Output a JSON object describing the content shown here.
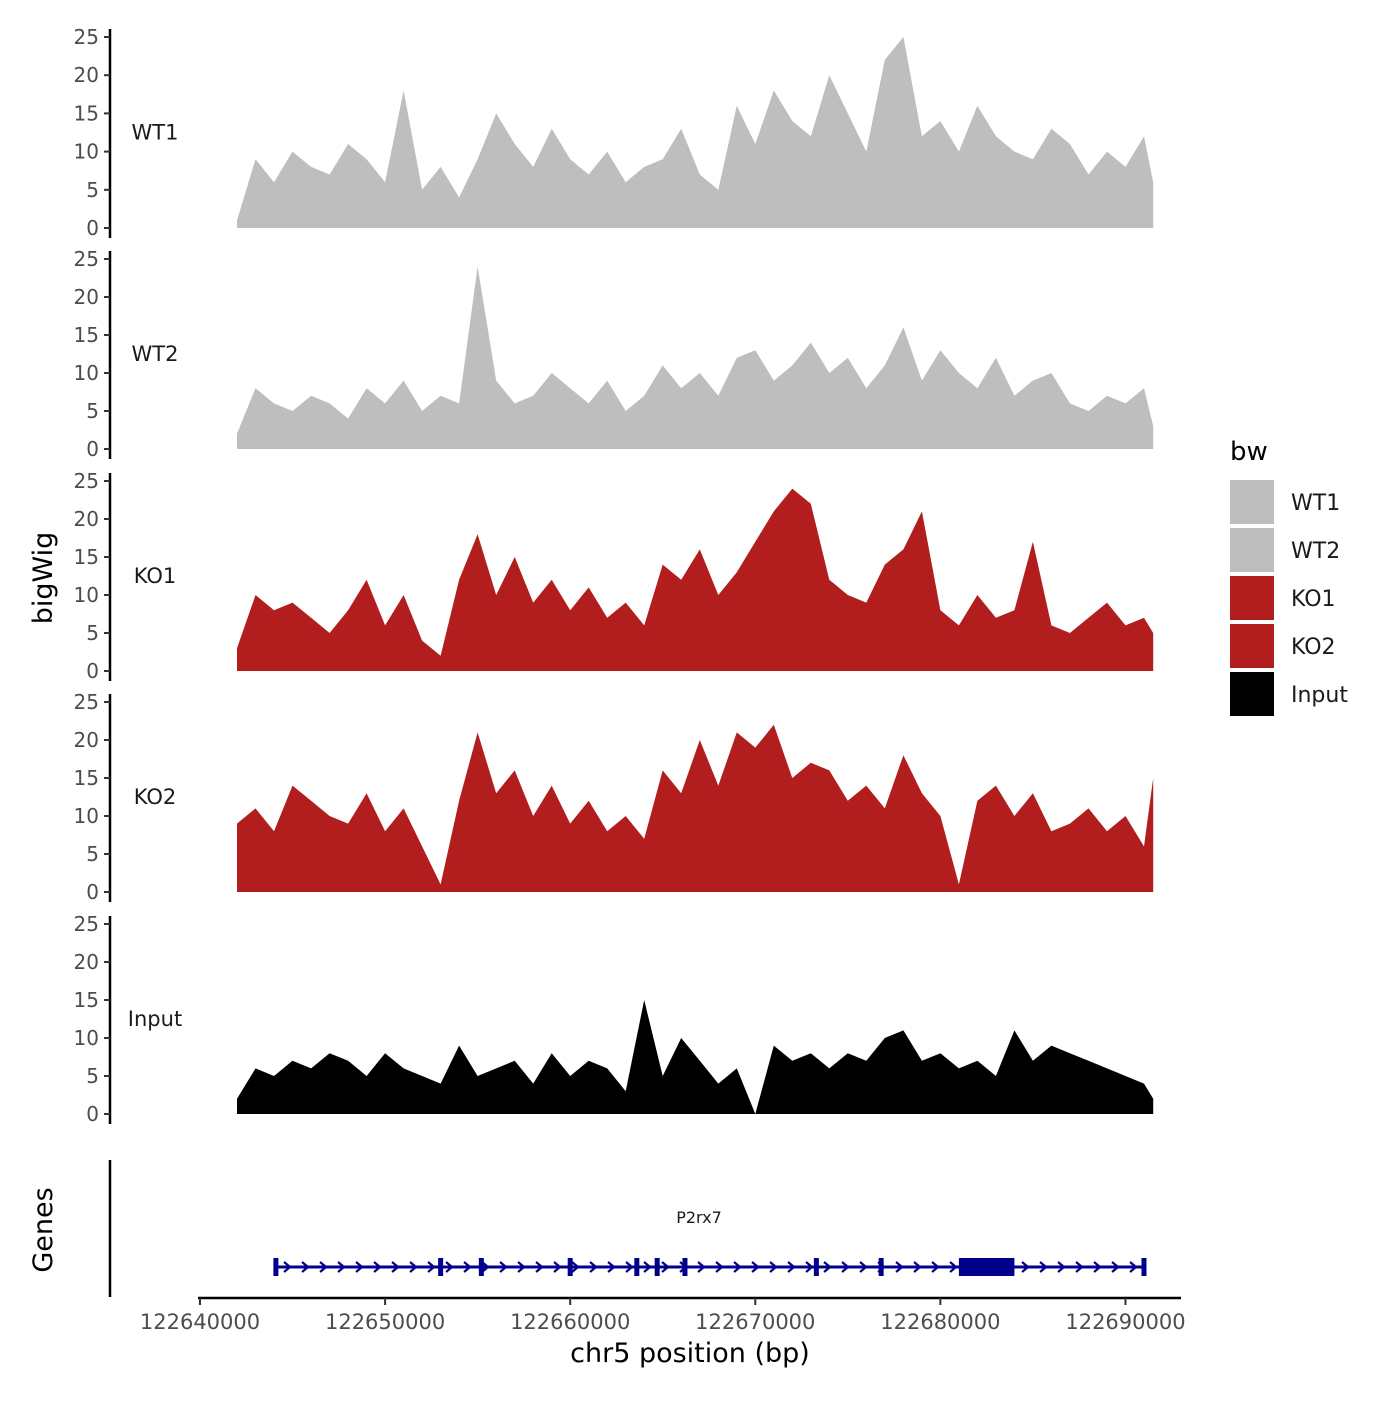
{
  "chart_data": {
    "type": "area",
    "title": "",
    "xlabel": "chr5 position (bp)",
    "ylabel": "bigWig",
    "genes_label": "Genes",
    "xlim": [
      122640000,
      122693000
    ],
    "x_ticks": [
      122640000,
      122650000,
      122660000,
      122670000,
      122680000,
      122690000
    ],
    "x_tick_labels": [
      "122640000",
      "122650000",
      "122660000",
      "122670000",
      "122680000",
      "122690000"
    ],
    "ylim": [
      0,
      25
    ],
    "y_ticks": [
      0,
      5,
      10,
      15,
      20,
      25
    ],
    "y_tick_labels": [
      "0",
      "5",
      "10",
      "15",
      "20",
      "25"
    ],
    "track_start": 122642000,
    "track_end": 122691500,
    "series": [
      {
        "name": "WT1",
        "color": "#bebebe",
        "x": [
          122642000,
          122643000,
          122644000,
          122645000,
          122646000,
          122647000,
          122648000,
          122649000,
          122650000,
          122651000,
          122652000,
          122653000,
          122654000,
          122655000,
          122656000,
          122657000,
          122658000,
          122659000,
          122660000,
          122661000,
          122662000,
          122663000,
          122664000,
          122665000,
          122666000,
          122667000,
          122668000,
          122669000,
          122670000,
          122671000,
          122672000,
          122673000,
          122674000,
          122675000,
          122676000,
          122677000,
          122678000,
          122679000,
          122680000,
          122681000,
          122682000,
          122683000,
          122684000,
          122685000,
          122686000,
          122687000,
          122688000,
          122689000,
          122690000,
          122691000,
          122691500
        ],
        "values": [
          1,
          9,
          6,
          10,
          8,
          7,
          11,
          9,
          6,
          18,
          5,
          8,
          4,
          9,
          15,
          11,
          8,
          13,
          9,
          7,
          10,
          6,
          8,
          9,
          13,
          7,
          5,
          16,
          11,
          18,
          14,
          12,
          20,
          15,
          10,
          22,
          25,
          12,
          14,
          10,
          16,
          12,
          10,
          9,
          13,
          11,
          7,
          10,
          8,
          12,
          6
        ]
      },
      {
        "name": "WT2",
        "color": "#bebebe",
        "x": [
          122642000,
          122643000,
          122644000,
          122645000,
          122646000,
          122647000,
          122648000,
          122649000,
          122650000,
          122651000,
          122652000,
          122653000,
          122654000,
          122655000,
          122656000,
          122657000,
          122658000,
          122659000,
          122660000,
          122661000,
          122662000,
          122663000,
          122664000,
          122665000,
          122666000,
          122667000,
          122668000,
          122669000,
          122670000,
          122671000,
          122672000,
          122673000,
          122674000,
          122675000,
          122676000,
          122677000,
          122678000,
          122679000,
          122680000,
          122681000,
          122682000,
          122683000,
          122684000,
          122685000,
          122686000,
          122687000,
          122688000,
          122689000,
          122690000,
          122691000,
          122691500
        ],
        "values": [
          2,
          8,
          6,
          5,
          7,
          6,
          4,
          8,
          6,
          9,
          5,
          7,
          6,
          24,
          9,
          6,
          7,
          10,
          8,
          6,
          9,
          5,
          7,
          11,
          8,
          10,
          7,
          12,
          13,
          9,
          11,
          14,
          10,
          12,
          8,
          11,
          16,
          9,
          13,
          10,
          8,
          12,
          7,
          9,
          10,
          6,
          5,
          7,
          6,
          8,
          3
        ]
      },
      {
        "name": "KO1",
        "color": "#b21e1e",
        "x": [
          122642000,
          122643000,
          122644000,
          122645000,
          122646000,
          122647000,
          122648000,
          122649000,
          122650000,
          122651000,
          122652000,
          122653000,
          122654000,
          122655000,
          122656000,
          122657000,
          122658000,
          122659000,
          122660000,
          122661000,
          122662000,
          122663000,
          122664000,
          122665000,
          122666000,
          122667000,
          122668000,
          122669000,
          122670000,
          122671000,
          122672000,
          122673000,
          122674000,
          122675000,
          122676000,
          122677000,
          122678000,
          122679000,
          122680000,
          122681000,
          122682000,
          122683000,
          122684000,
          122685000,
          122686000,
          122687000,
          122688000,
          122689000,
          122690000,
          122691000,
          122691500
        ],
        "values": [
          3,
          10,
          8,
          9,
          7,
          5,
          8,
          12,
          6,
          10,
          4,
          2,
          12,
          18,
          10,
          15,
          9,
          12,
          8,
          11,
          7,
          9,
          6,
          14,
          12,
          16,
          10,
          13,
          17,
          21,
          24,
          22,
          12,
          10,
          9,
          14,
          16,
          21,
          8,
          6,
          10,
          7,
          8,
          17,
          6,
          5,
          7,
          9,
          6,
          7,
          5
        ]
      },
      {
        "name": "KO2",
        "color": "#b21e1e",
        "x": [
          122642000,
          122643000,
          122644000,
          122645000,
          122646000,
          122647000,
          122648000,
          122649000,
          122650000,
          122651000,
          122652000,
          122653000,
          122654000,
          122655000,
          122656000,
          122657000,
          122658000,
          122659000,
          122660000,
          122661000,
          122662000,
          122663000,
          122664000,
          122665000,
          122666000,
          122667000,
          122668000,
          122669000,
          122670000,
          122671000,
          122672000,
          122673000,
          122674000,
          122675000,
          122676000,
          122677000,
          122678000,
          122679000,
          122680000,
          122681000,
          122682000,
          122683000,
          122684000,
          122685000,
          122686000,
          122687000,
          122688000,
          122689000,
          122690000,
          122691000,
          122691500
        ],
        "values": [
          9,
          11,
          8,
          14,
          12,
          10,
          9,
          13,
          8,
          11,
          6,
          1,
          12,
          21,
          13,
          16,
          10,
          14,
          9,
          12,
          8,
          10,
          7,
          16,
          13,
          20,
          14,
          21,
          19,
          22,
          15,
          17,
          16,
          12,
          14,
          11,
          18,
          13,
          10,
          1,
          12,
          14,
          10,
          13,
          8,
          9,
          11,
          8,
          10,
          6,
          15
        ]
      },
      {
        "name": "Input",
        "color": "#000000",
        "x": [
          122642000,
          122643000,
          122644000,
          122645000,
          122646000,
          122647000,
          122648000,
          122649000,
          122650000,
          122651000,
          122652000,
          122653000,
          122654000,
          122655000,
          122656000,
          122657000,
          122658000,
          122659000,
          122660000,
          122661000,
          122662000,
          122663000,
          122664000,
          122665000,
          122666000,
          122667000,
          122668000,
          122669000,
          122670000,
          122671000,
          122672000,
          122673000,
          122674000,
          122675000,
          122676000,
          122677000,
          122678000,
          122679000,
          122680000,
          122681000,
          122682000,
          122683000,
          122684000,
          122685000,
          122686000,
          122687000,
          122688000,
          122689000,
          122690000,
          122691000,
          122691500
        ],
        "values": [
          2,
          6,
          5,
          7,
          6,
          8,
          7,
          5,
          8,
          6,
          5,
          4,
          9,
          5,
          6,
          7,
          4,
          8,
          5,
          7,
          6,
          3,
          15,
          5,
          10,
          7,
          4,
          6,
          0,
          9,
          7,
          8,
          6,
          8,
          7,
          10,
          11,
          7,
          8,
          6,
          7,
          5,
          11,
          7,
          9,
          8,
          7,
          6,
          5,
          4,
          2
        ]
      }
    ],
    "legend": {
      "title": "bw",
      "position": "right",
      "entries": [
        {
          "label": "WT1",
          "color": "#bebebe"
        },
        {
          "label": "WT2",
          "color": "#bebebe"
        },
        {
          "label": "KO1",
          "color": "#b21e1e"
        },
        {
          "label": "KO2",
          "color": "#b21e1e"
        },
        {
          "label": "Input",
          "color": "#000000"
        }
      ]
    },
    "gene": {
      "name": "P2rx7",
      "start": 122644000,
      "end": 122691000,
      "color": "#00008b",
      "strand": "+",
      "exon_positions": [
        122644100,
        122653000,
        122655200,
        122660000,
        122663600,
        122664700,
        122666200,
        122673300,
        122676800,
        122691000
      ],
      "coding_block": [
        122681000,
        122684000
      ]
    }
  }
}
